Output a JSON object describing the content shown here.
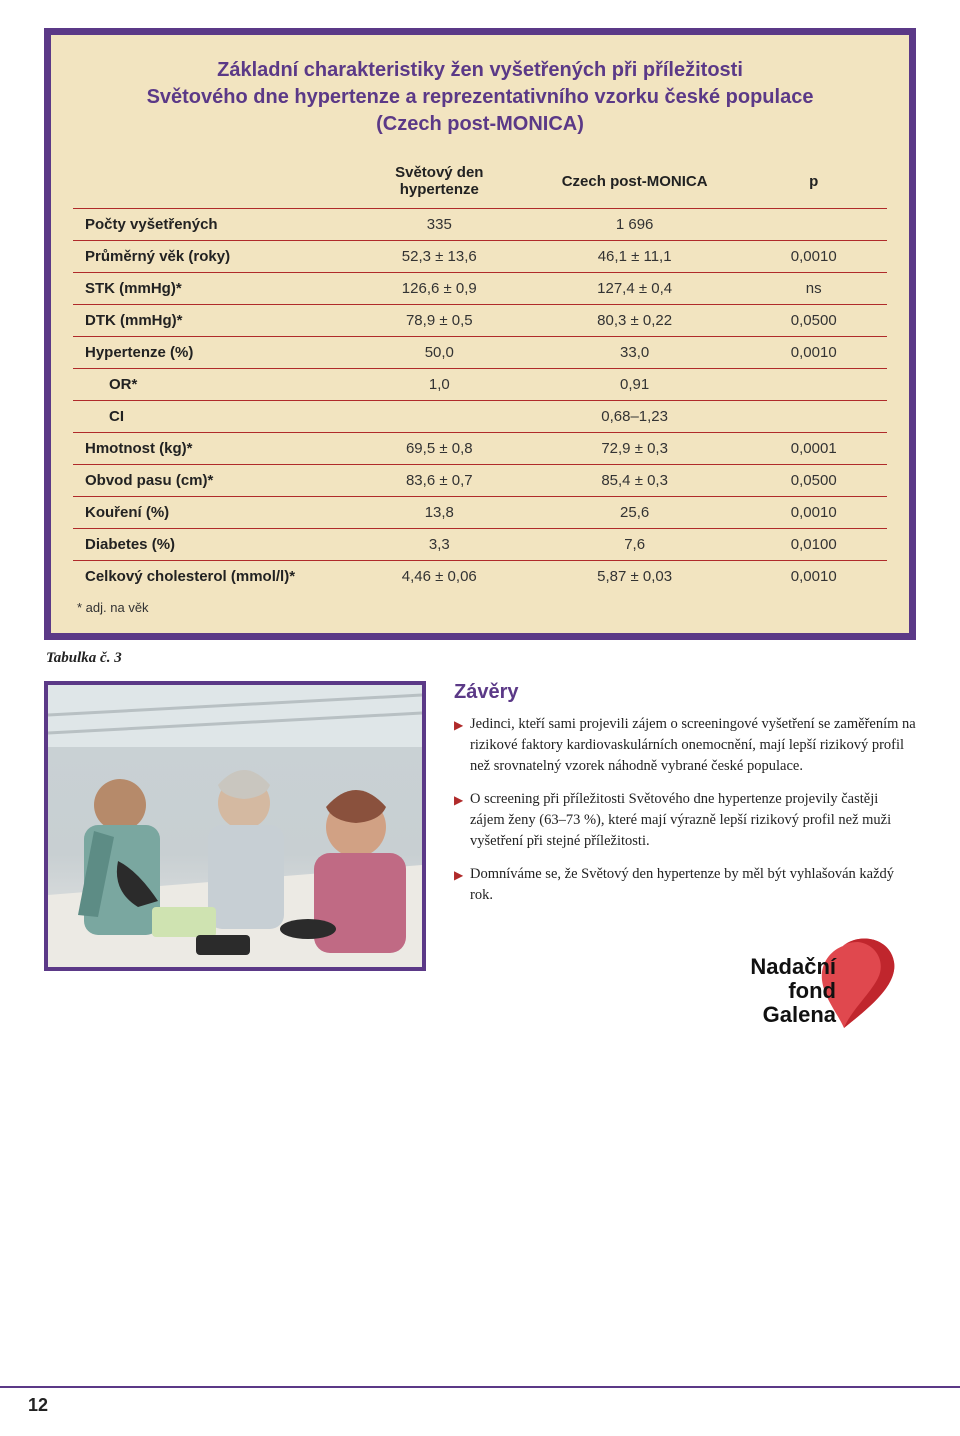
{
  "colors": {
    "frame": "#5b3987",
    "panel_bg": "#f2e4c0",
    "rule": "#b02a2a",
    "text": "#222222",
    "bullet": "#b02a2a"
  },
  "table": {
    "title_line1": "Základní charakteristiky žen vyšetřených při příležitosti",
    "title_line2": "Světového dne hypertenze a reprezentativního vzorku české populace",
    "title_line3": "(Czech post-MONICA)",
    "columns": [
      {
        "label_line1": "",
        "label_line2": "",
        "align": "left",
        "width": "34%"
      },
      {
        "label_line1": "Světový den",
        "label_line2": "hypertenze",
        "align": "center",
        "width": "22%"
      },
      {
        "label_line1": "Czech post-MONICA",
        "label_line2": "",
        "align": "center",
        "width": "26%"
      },
      {
        "label_line1": "p",
        "label_line2": "",
        "align": "center",
        "width": "18%"
      }
    ],
    "rows": [
      {
        "label": "Počty vyšetřených",
        "c1": "335",
        "c2": "1 696",
        "c3": "",
        "indent": false
      },
      {
        "label": "Průměrný věk (roky)",
        "c1": "52,3 ± 13,6",
        "c2": "46,1 ± 11,1",
        "c3": "0,0010",
        "indent": false
      },
      {
        "label": "STK (mmHg)*",
        "c1": "126,6 ± 0,9",
        "c2": "127,4 ± 0,4",
        "c3": "ns",
        "indent": false
      },
      {
        "label": "DTK (mmHg)*",
        "c1": "78,9 ± 0,5",
        "c2": "80,3 ± 0,22",
        "c3": "0,0500",
        "indent": false
      },
      {
        "label": "Hypertenze (%)",
        "c1": "50,0",
        "c2": "33,0",
        "c3": "0,0010",
        "indent": false
      },
      {
        "label": "OR*",
        "c1": "1,0",
        "c2": "0,91",
        "c3": "",
        "indent": true
      },
      {
        "label": "CI",
        "c1": "",
        "c2": "0,68–1,23",
        "c3": "",
        "indent": true
      },
      {
        "label": "Hmotnost (kg)*",
        "c1": "69,5 ± 0,8",
        "c2": "72,9 ± 0,3",
        "c3": "0,0001",
        "indent": false
      },
      {
        "label": "Obvod pasu (cm)*",
        "c1": "83,6 ± 0,7",
        "c2": "85,4 ± 0,3",
        "c3": "0,0500",
        "indent": false
      },
      {
        "label": "Kouření (%)",
        "c1": "13,8",
        "c2": "25,6",
        "c3": "0,0010",
        "indent": false
      },
      {
        "label": "Diabetes (%)",
        "c1": "3,3",
        "c2": "7,6",
        "c3": "0,0100",
        "indent": false
      },
      {
        "label": "Celkový cholesterol (mmol/l)*",
        "c1": "4,46 ± 0,06",
        "c2": "5,87 ± 0,03",
        "c3": "0,0010",
        "indent": false
      }
    ],
    "footnote": "* adj. na věk"
  },
  "caption": "Tabulka č. 3",
  "zavery_heading": "Závěry",
  "paragraphs": [
    "Jedinci, kteří sami projevili zájem o screeningové vyšetření se zaměřením na rizikové faktory kardiovaskulárních onemocnění, mají lepší rizikový profil než srovnatelný vzorek náhodně vybrané české populace.",
    "O screening při příležitosti Světového dne hypertenze projevily častěji zájem ženy (63–73 %), které mají výrazně lepší rizikový profil než muži vyšetření při stejné příležitosti.",
    "Domníváme se, že Světový den hypertenze by měl být vyhlašován každý rok."
  ],
  "logo": {
    "line1": "Nadační",
    "line2": "fond",
    "line3": "Galena",
    "text_color": "#111111",
    "heart_outer": "#c0262d",
    "heart_inner": "#e0484e"
  },
  "page_number": "12"
}
